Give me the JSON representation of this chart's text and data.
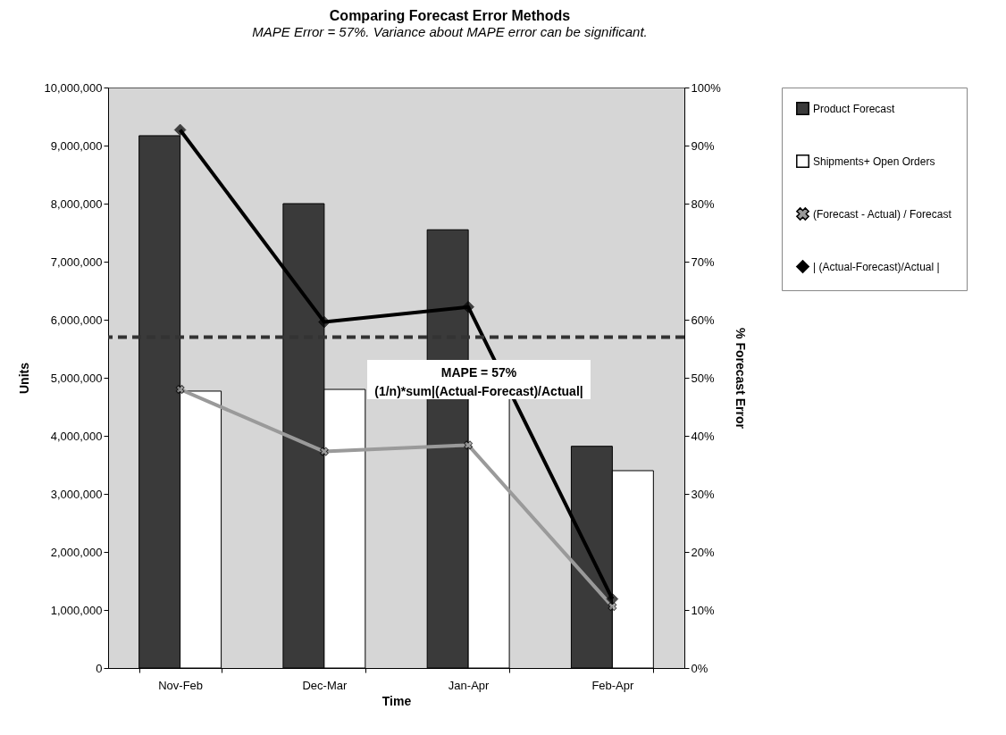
{
  "chart_data": {
    "type": "bar",
    "title": "Comparing Forecast Error Methods",
    "subtitle": "MAPE Error = 57%.  Variance about MAPE error can be significant.",
    "xlabel": "Time",
    "ylabel": "Units",
    "y2label": "% Forecast Error",
    "categories": [
      "Nov-Feb",
      "Dec-Mar",
      "Jan-Apr",
      "Feb-Apr"
    ],
    "series": [
      {
        "name": "Product Forecast",
        "color": "#3a3a3a",
        "values": [
          9170000,
          8000000,
          7550000,
          3820000
        ]
      },
      {
        "name": "Shipments+ Open Orders",
        "color": "#ffffff",
        "values": [
          4770000,
          4800000,
          4650000,
          3400000
        ]
      },
      {
        "name": "(Forecast - Actual) / Forecast",
        "type": "line",
        "axis": "y2",
        "color": "#9a9a9a",
        "marker": "cross",
        "values": [
          48.0,
          37.3,
          38.4,
          10.6
        ]
      },
      {
        "name": "| (Actual-Forecast)/Actual |",
        "type": "line",
        "axis": "y2",
        "color": "#000000",
        "marker": "diamond",
        "values": [
          92.7,
          59.6,
          62.2,
          11.9
        ]
      }
    ],
    "ylim": [
      0,
      10000000
    ],
    "yticks": [
      0,
      {
        "value": 1000000,
        "label": "1,000,000"
      },
      {
        "value": 2000000,
        "label": "2,000,000"
      },
      {
        "value": 3000000,
        "label": "3,000,000"
      },
      {
        "value": 4000000,
        "label": "4,000,000"
      },
      {
        "value": 5000000,
        "label": "5,000,000"
      },
      {
        "value": 6000000,
        "label": "6,000,000"
      },
      {
        "value": 7000000,
        "label": "7,000,000"
      },
      {
        "value": 8000000,
        "label": "8,000,000"
      },
      {
        "value": 9000000,
        "label": "9,000,000"
      },
      {
        "value": 10000000,
        "label": "10,000,000"
      }
    ],
    "y2lim": [
      0,
      100
    ],
    "y2ticks": [
      {
        "value": 0,
        "label": "0%"
      },
      {
        "value": 10,
        "label": "10%"
      },
      {
        "value": 20,
        "label": "20%"
      },
      {
        "value": 30,
        "label": "30%"
      },
      {
        "value": 40,
        "label": "40%"
      },
      {
        "value": 50,
        "label": "50%"
      },
      {
        "value": 60,
        "label": "60%"
      },
      {
        "value": 70,
        "label": "70%"
      },
      {
        "value": 80,
        "label": "80%"
      },
      {
        "value": 90,
        "label": "90%"
      },
      {
        "value": 100,
        "label": "100%"
      }
    ],
    "ref_lines": [
      {
        "axis": "y2",
        "value": 57,
        "color": "#333333",
        "line_style": "dashed"
      }
    ],
    "annotations": [
      "MAPE = 57%",
      "(1/n)*sum|(Actual-Forecast)/Actual|"
    ],
    "legend": "right",
    "grid": false,
    "line_style": "solid"
  }
}
